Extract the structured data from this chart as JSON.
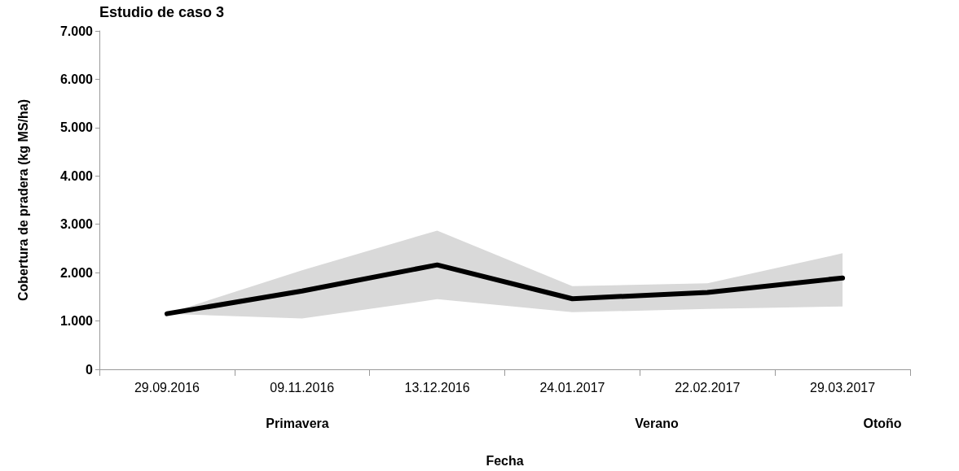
{
  "chart_data": {
    "type": "line",
    "title": "Estudio de caso 3",
    "xlabel": "Fecha",
    "ylabel": "Cobertura de pradera (kg MS/ha)",
    "categories": [
      "29.09.2016",
      "09.11.2016",
      "13.12.2016",
      "24.01.2017",
      "22.02.2017",
      "29.03.2017"
    ],
    "series": [
      {
        "color": "#000000",
        "values": [
          1150,
          1620,
          2160,
          1460,
          1590,
          1890
        ],
        "lower": [
          1150,
          1050,
          1450,
          1180,
          1250,
          1300
        ],
        "upper": [
          1150,
          2050,
          2870,
          1720,
          1780,
          2400
        ]
      }
    ],
    "ylim": [
      0,
      7000
    ],
    "yticks": [
      0,
      {
        "value": 1000,
        "label": "1.000"
      },
      {
        "value": 2000,
        "label": "2.000"
      },
      {
        "value": 3000,
        "label": "3.000"
      },
      {
        "value": 4000,
        "label": "4.000"
      },
      {
        "value": 5000,
        "label": "5.000"
      },
      {
        "value": 6000,
        "label": "6.000"
      },
      {
        "value": 7000,
        "label": "7.000"
      }
    ],
    "annotations": [
      "Primavera",
      "Verano",
      "Otoño"
    ],
    "grid": false,
    "marker": "none",
    "line_style": "solid"
  }
}
